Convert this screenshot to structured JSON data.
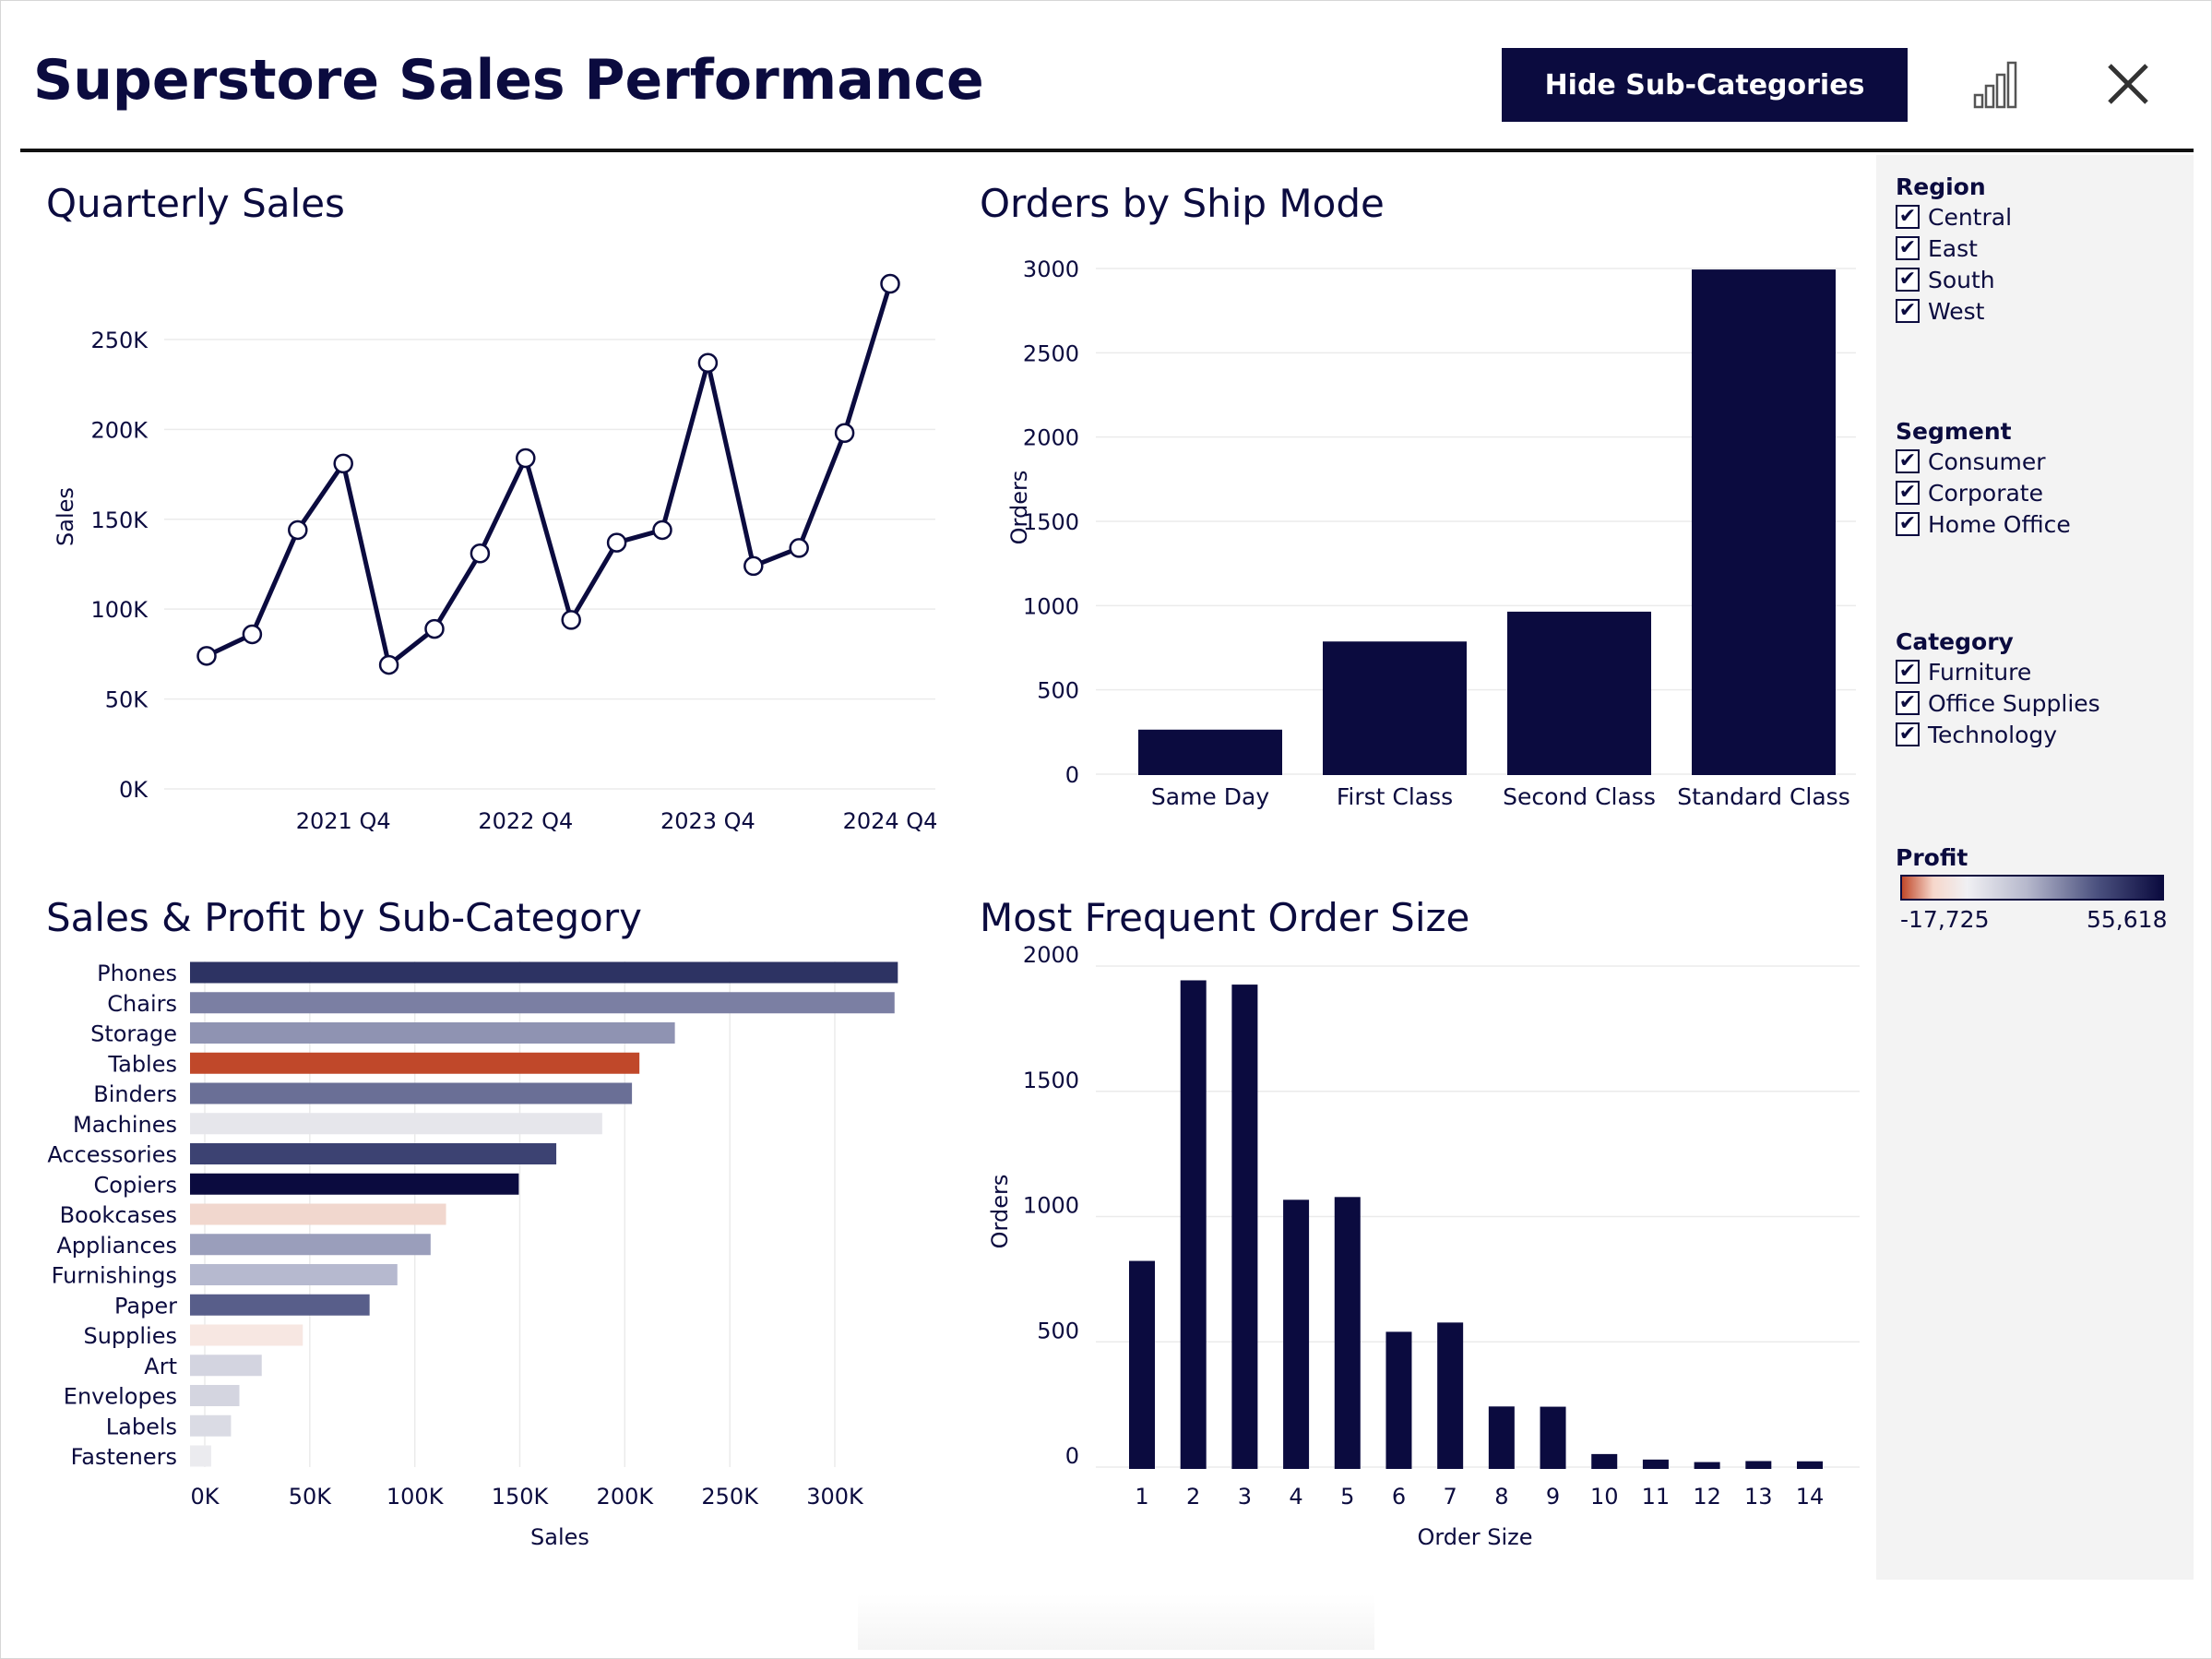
{
  "header": {
    "title": "Superstore Sales Performance",
    "hide_button_label": "Hide Sub-Categories",
    "chart_icon": "bar-chart-icon",
    "close_icon": "close-icon"
  },
  "colors": {
    "navy": "#0b0b3f",
    "negative_profit": "#c0482a",
    "grid": "#ebebeb"
  },
  "filters": {
    "region": {
      "label": "Region",
      "items": [
        "Central",
        "East",
        "South",
        "West"
      ]
    },
    "segment": {
      "label": "Segment",
      "items": [
        "Consumer",
        "Corporate",
        "Home Office"
      ]
    },
    "category": {
      "label": "Category",
      "items": [
        "Furniture",
        "Office Supplies",
        "Technology"
      ]
    }
  },
  "profit_legend": {
    "label": "Profit",
    "min_label": "-17,725",
    "max_label": "55,618"
  },
  "chart_data": [
    {
      "type": "line",
      "title": "Quarterly Sales",
      "xlabel": "",
      "ylabel": "Sales",
      "x": [
        "2021 Q1",
        "2021 Q2",
        "2021 Q3",
        "2021 Q4",
        "2022 Q1",
        "2022 Q2",
        "2022 Q3",
        "2022 Q4",
        "2023 Q1",
        "2023 Q2",
        "2023 Q3",
        "2023 Q4",
        "2024 Q1",
        "2024 Q2",
        "2024 Q3",
        "2024 Q4"
      ],
      "values": [
        74000,
        86000,
        144000,
        181000,
        69000,
        89000,
        131000,
        184000,
        94000,
        137000,
        144000,
        237000,
        124000,
        134000,
        198000,
        281000
      ],
      "x_tick_labels": [
        "2021 Q4",
        "2022 Q4",
        "2023 Q4",
        "2024 Q4"
      ],
      "y_ticks": [
        0,
        50000,
        100000,
        150000,
        200000,
        250000
      ],
      "y_tick_labels": [
        "0K",
        "50K",
        "100K",
        "150K",
        "200K",
        "250K"
      ],
      "ylim": [
        0,
        290000
      ],
      "grid": true
    },
    {
      "type": "bar",
      "title": "Orders by Ship Mode",
      "xlabel": "",
      "ylabel": "Orders",
      "categories": [
        "Same Day",
        "First Class",
        "Second Class",
        "Standard Class"
      ],
      "values": [
        264,
        787,
        964,
        2994
      ],
      "y_ticks": [
        0,
        500,
        1000,
        1500,
        2000,
        2500,
        3000
      ],
      "ylim": [
        0,
        3000
      ],
      "grid": true
    },
    {
      "type": "bar",
      "orientation": "horizontal",
      "title": "Sales & Profit by Sub-Category",
      "xlabel": "Sales",
      "ylabel": "",
      "categories": [
        "Phones",
        "Chairs",
        "Storage",
        "Tables",
        "Binders",
        "Machines",
        "Accessories",
        "Copiers",
        "Bookcases",
        "Appliances",
        "Furnishings",
        "Paper",
        "Supplies",
        "Art",
        "Envelopes",
        "Labels",
        "Fasteners"
      ],
      "values": [
        330007,
        328449,
        223844,
        206966,
        203413,
        189239,
        167380,
        149528,
        114880,
        107532,
        91705,
        78479,
        46674,
        27119,
        16476,
        12486,
        3024
      ],
      "colors": [
        "#2d3363",
        "#7b7fa3",
        "#8f93b2",
        "#c0482a",
        "#6a6f96",
        "#e6e6eb",
        "#3c4272",
        "#0b0b3f",
        "#f1d7ce",
        "#9a9ebb",
        "#b6b9cf",
        "#585e8a",
        "#f7e7e2",
        "#d3d4e0",
        "#d4d5e0",
        "#dadbe4",
        "#ebebef"
      ],
      "x_ticks": [
        0,
        50000,
        100000,
        150000,
        200000,
        250000,
        300000
      ],
      "x_tick_labels": [
        "0K",
        "50K",
        "100K",
        "150K",
        "200K",
        "250K",
        "300K"
      ],
      "xlim": [
        -8000,
        350000
      ],
      "grid": true
    },
    {
      "type": "bar",
      "title": "Most Frequent Order Size",
      "xlabel": "Order Size",
      "ylabel": "Orders",
      "categories": [
        "1",
        "2",
        "3",
        "4",
        "5",
        "6",
        "7",
        "8",
        "9",
        "10",
        "11",
        "12",
        "13",
        "14"
      ],
      "values": [
        823,
        1943,
        1926,
        1067,
        1078,
        540,
        577,
        242,
        241,
        52,
        30,
        20,
        24,
        23
      ],
      "y_ticks": [
        0,
        500,
        1000,
        1500,
        2000
      ],
      "ylim": [
        -50,
        2000
      ],
      "grid": true
    }
  ]
}
